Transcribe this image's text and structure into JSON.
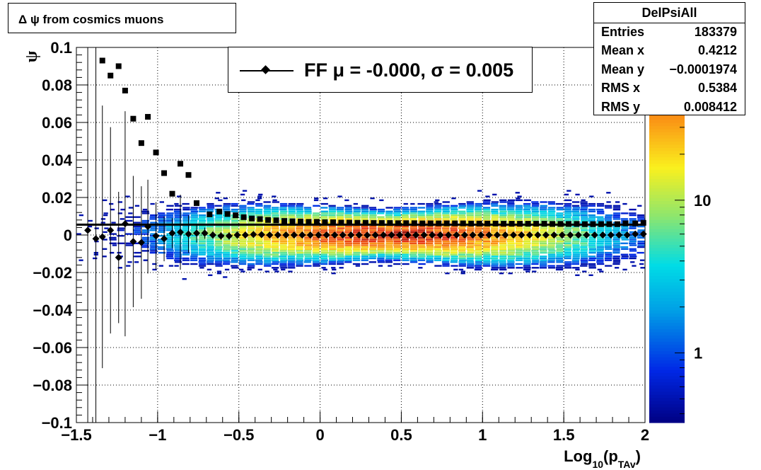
{
  "title_box": {
    "text": "Δ ψ from cosmics muons"
  },
  "stats": {
    "name": "DelPsiAll",
    "rows": [
      {
        "key": "Entries",
        "value": "183379"
      },
      {
        "key": "Mean x",
        "value": "0.4212"
      },
      {
        "key": "Mean y",
        "value": "−0.0001974"
      },
      {
        "key": "RMS x",
        "value": "0.5384"
      },
      {
        "key": "RMS y",
        "value": "0.008412"
      }
    ]
  },
  "legend": {
    "text": "FF μ = -0.000, σ =   0.005"
  },
  "colors": {
    "profile": "#000000",
    "frame": "#000000",
    "fit_line": "#000000"
  },
  "chart_data": {
    "type": "heatmap",
    "ylabel": "ψ",
    "xlabel_main": "Log",
    "xlabel_sub1": "10",
    "xlabel_mid": "(p",
    "xlabel_sub2": "TAv",
    "xlabel_end": ")",
    "xlim": [
      -1.5,
      2
    ],
    "ylim": [
      -0.1,
      0.1
    ],
    "x_ticks": [
      {
        "value": -1.5,
        "label": "−1.5"
      },
      {
        "value": -1.0,
        "label": "−1"
      },
      {
        "value": -0.5,
        "label": "−0.5"
      },
      {
        "value": 0.0,
        "label": "0"
      },
      {
        "value": 0.5,
        "label": "0.5"
      },
      {
        "value": 1.0,
        "label": "1"
      },
      {
        "value": 1.5,
        "label": "1.5"
      },
      {
        "value": 2.0,
        "label": "2"
      }
    ],
    "y_ticks": [
      {
        "value": 0.1,
        "label": "0.1"
      },
      {
        "value": 0.08,
        "label": "0.08"
      },
      {
        "value": 0.06,
        "label": "0.06"
      },
      {
        "value": 0.04,
        "label": "0.04"
      },
      {
        "value": 0.02,
        "label": "0.02"
      },
      {
        "value": 0.0,
        "label": "0"
      },
      {
        "value": -0.02,
        "label": "−0.02"
      },
      {
        "value": -0.04,
        "label": "−0.04"
      },
      {
        "value": -0.06,
        "label": "−0.06"
      },
      {
        "value": -0.08,
        "label": "−0.08"
      },
      {
        "value": -0.1,
        "label": "−0.1"
      }
    ],
    "grid": true,
    "colorbar": {
      "scale": "log",
      "range": [
        0.35,
        100
      ],
      "ticks": [
        {
          "value": 1,
          "label": "1"
        },
        {
          "value": 10,
          "label": "10"
        }
      ]
    },
    "fit_line_y": 0.0055,
    "sigma_profile": [
      {
        "x": -1.34,
        "y": 0.093
      },
      {
        "x": -1.29,
        "y": 0.085
      },
      {
        "x": -1.24,
        "y": 0.09
      },
      {
        "x": -1.2,
        "y": 0.077
      },
      {
        "x": -1.15,
        "y": 0.062
      },
      {
        "x": -1.1,
        "y": 0.049
      },
      {
        "x": -1.06,
        "y": 0.063
      },
      {
        "x": -1.01,
        "y": 0.044
      },
      {
        "x": -0.96,
        "y": 0.033
      },
      {
        "x": -0.91,
        "y": 0.022
      },
      {
        "x": -0.86,
        "y": 0.038
      },
      {
        "x": -0.81,
        "y": 0.032
      },
      {
        "x": -0.76,
        "y": 0.017
      },
      {
        "x": -0.68,
        "y": 0.011
      },
      {
        "x": -0.62,
        "y": 0.0125
      },
      {
        "x": -0.57,
        "y": 0.0112
      },
      {
        "x": -0.52,
        "y": 0.0105
      },
      {
        "x": -0.47,
        "y": 0.0095
      },
      {
        "x": -0.42,
        "y": 0.0088
      },
      {
        "x": -0.37,
        "y": 0.0085
      },
      {
        "x": -0.32,
        "y": 0.008
      },
      {
        "x": -0.27,
        "y": 0.0078
      },
      {
        "x": -0.22,
        "y": 0.0075
      },
      {
        "x": -0.17,
        "y": 0.0073
      },
      {
        "x": -0.12,
        "y": 0.0072
      },
      {
        "x": -0.07,
        "y": 0.007
      },
      {
        "x": -0.02,
        "y": 0.007
      },
      {
        "x": 0.03,
        "y": 0.0068
      },
      {
        "x": 0.08,
        "y": 0.0068
      },
      {
        "x": 0.13,
        "y": 0.0066
      },
      {
        "x": 0.18,
        "y": 0.0066
      },
      {
        "x": 0.23,
        "y": 0.0065
      },
      {
        "x": 0.28,
        "y": 0.0065
      },
      {
        "x": 0.33,
        "y": 0.0064
      },
      {
        "x": 0.38,
        "y": 0.0064
      },
      {
        "x": 0.43,
        "y": 0.0064
      },
      {
        "x": 0.48,
        "y": 0.0063
      },
      {
        "x": 0.53,
        "y": 0.0063
      },
      {
        "x": 0.58,
        "y": 0.0063
      },
      {
        "x": 0.63,
        "y": 0.0062
      },
      {
        "x": 0.68,
        "y": 0.0062
      },
      {
        "x": 0.73,
        "y": 0.0062
      },
      {
        "x": 0.78,
        "y": 0.0062
      },
      {
        "x": 0.83,
        "y": 0.0062
      },
      {
        "x": 0.88,
        "y": 0.0062
      },
      {
        "x": 0.93,
        "y": 0.0061
      },
      {
        "x": 0.98,
        "y": 0.0061
      },
      {
        "x": 1.03,
        "y": 0.0061
      },
      {
        "x": 1.08,
        "y": 0.0061
      },
      {
        "x": 1.13,
        "y": 0.006
      },
      {
        "x": 1.18,
        "y": 0.006
      },
      {
        "x": 1.23,
        "y": 0.006
      },
      {
        "x": 1.28,
        "y": 0.006
      },
      {
        "x": 1.33,
        "y": 0.006
      },
      {
        "x": 1.38,
        "y": 0.006
      },
      {
        "x": 1.43,
        "y": 0.0059
      },
      {
        "x": 1.48,
        "y": 0.0059
      },
      {
        "x": 1.53,
        "y": 0.0059
      },
      {
        "x": 1.58,
        "y": 0.0059
      },
      {
        "x": 1.63,
        "y": 0.0058
      },
      {
        "x": 1.68,
        "y": 0.0058
      },
      {
        "x": 1.73,
        "y": 0.0058
      },
      {
        "x": 1.78,
        "y": 0.0058
      },
      {
        "x": 1.83,
        "y": 0.0058
      },
      {
        "x": 1.88,
        "y": 0.0062
      },
      {
        "x": 1.94,
        "y": 0.0062
      },
      {
        "x": 1.99,
        "y": 0.0065
      }
    ],
    "mean_profile": [
      {
        "x": -1.43,
        "y": 0.0025,
        "err": 0.11
      },
      {
        "x": -1.38,
        "y": -0.002,
        "err": 0.11
      },
      {
        "x": -1.34,
        "y": -0.001,
        "err": 0.07
      },
      {
        "x": -1.29,
        "y": 0.0025,
        "err": 0.055
      },
      {
        "x": -1.24,
        "y": -0.012,
        "err": 0.035
      },
      {
        "x": -1.2,
        "y": 0.006,
        "err": 0.06
      },
      {
        "x": -1.15,
        "y": -0.0035,
        "err": 0.035
      },
      {
        "x": -1.1,
        "y": -0.004,
        "err": 0.03
      },
      {
        "x": -1.06,
        "y": 0.0045,
        "err": 0.025
      },
      {
        "x": -1.01,
        "y": -0.0005,
        "err": 0.018
      },
      {
        "x": -0.96,
        "y": -0.002,
        "err": 0.012
      },
      {
        "x": -0.91,
        "y": 0.001,
        "err": 0.008
      },
      {
        "x": -0.86,
        "y": 0.0015,
        "err": 0.02
      },
      {
        "x": -0.81,
        "y": 0.0005,
        "err": 0.01
      },
      {
        "x": -0.76,
        "y": 0.001,
        "err": 0.005
      },
      {
        "x": -0.71,
        "y": 0.001,
        "err": 0.003
      },
      {
        "x": -0.66,
        "y": 0.0,
        "err": 0.002
      },
      {
        "x": -0.61,
        "y": -0.0005,
        "err": 0.002
      },
      {
        "x": -0.56,
        "y": -0.0005,
        "err": 0.002
      },
      {
        "x": -0.51,
        "y": 0.0,
        "err": 0.002
      },
      {
        "x": -0.46,
        "y": 0.0,
        "err": 0.0
      },
      {
        "x": -0.41,
        "y": 0.0003,
        "err": 0.0
      },
      {
        "x": -0.36,
        "y": 0.0002,
        "err": 0.0
      },
      {
        "x": -0.31,
        "y": 0.0,
        "err": 0.0
      },
      {
        "x": -0.26,
        "y": 0.0,
        "err": 0.0
      },
      {
        "x": -0.21,
        "y": 0.0,
        "err": 0.0
      },
      {
        "x": -0.16,
        "y": 0.0,
        "err": 0.0
      },
      {
        "x": -0.11,
        "y": 0.0,
        "err": 0.0
      },
      {
        "x": -0.06,
        "y": 0.0,
        "err": 0.0
      },
      {
        "x": -0.01,
        "y": 0.0,
        "err": 0.0
      },
      {
        "x": 0.04,
        "y": 0.0,
        "err": 0.0
      },
      {
        "x": 0.09,
        "y": 0.0,
        "err": 0.0
      },
      {
        "x": 0.14,
        "y": 0.0,
        "err": 0.0
      },
      {
        "x": 0.19,
        "y": 0.0,
        "err": 0.0
      },
      {
        "x": 0.24,
        "y": 0.0,
        "err": 0.0
      },
      {
        "x": 0.29,
        "y": -0.0001,
        "err": 0.0
      },
      {
        "x": 0.34,
        "y": 0.0,
        "err": 0.0
      },
      {
        "x": 0.39,
        "y": 0.0,
        "err": 0.0
      },
      {
        "x": 0.44,
        "y": 0.0,
        "err": 0.0
      },
      {
        "x": 0.49,
        "y": 0.0,
        "err": 0.0
      },
      {
        "x": 0.54,
        "y": 0.0,
        "err": 0.0
      },
      {
        "x": 0.59,
        "y": 0.0,
        "err": 0.0
      },
      {
        "x": 0.64,
        "y": 0.0,
        "err": 0.0
      },
      {
        "x": 0.69,
        "y": 0.0,
        "err": 0.0
      },
      {
        "x": 0.74,
        "y": 0.0,
        "err": 0.0
      },
      {
        "x": 0.79,
        "y": 0.0,
        "err": 0.0
      },
      {
        "x": 0.84,
        "y": 0.0,
        "err": 0.0
      },
      {
        "x": 0.89,
        "y": 0.0,
        "err": 0.0
      },
      {
        "x": 0.94,
        "y": 0.0,
        "err": 0.0
      },
      {
        "x": 0.99,
        "y": 0.0,
        "err": 0.0
      },
      {
        "x": 1.04,
        "y": 0.0,
        "err": 0.0
      },
      {
        "x": 1.09,
        "y": 0.0,
        "err": 0.0
      },
      {
        "x": 1.14,
        "y": 0.0,
        "err": 0.0
      },
      {
        "x": 1.19,
        "y": 0.0,
        "err": 0.0
      },
      {
        "x": 1.24,
        "y": 0.0,
        "err": 0.0
      },
      {
        "x": 1.29,
        "y": 0.0,
        "err": 0.0
      },
      {
        "x": 1.34,
        "y": 0.0,
        "err": 0.0
      },
      {
        "x": 1.39,
        "y": 0.0,
        "err": 0.0
      },
      {
        "x": 1.44,
        "y": 0.0,
        "err": 0.0
      },
      {
        "x": 1.49,
        "y": 0.0,
        "err": 0.0
      },
      {
        "x": 1.54,
        "y": 0.0,
        "err": 0.0
      },
      {
        "x": 1.59,
        "y": 0.0,
        "err": 0.0
      },
      {
        "x": 1.64,
        "y": 0.0,
        "err": 0.0
      },
      {
        "x": 1.69,
        "y": 0.0,
        "err": 0.0
      },
      {
        "x": 1.74,
        "y": 0.0,
        "err": 0.0
      },
      {
        "x": 1.79,
        "y": 0.0,
        "err": 0.0
      },
      {
        "x": 1.84,
        "y": 0.0,
        "err": 0.0
      },
      {
        "x": 1.89,
        "y": 0.0,
        "err": 0.0
      },
      {
        "x": 1.94,
        "y": 0.0005,
        "err": 0.0
      },
      {
        "x": 1.99,
        "y": 0.0005,
        "err": 0.0
      }
    ]
  }
}
